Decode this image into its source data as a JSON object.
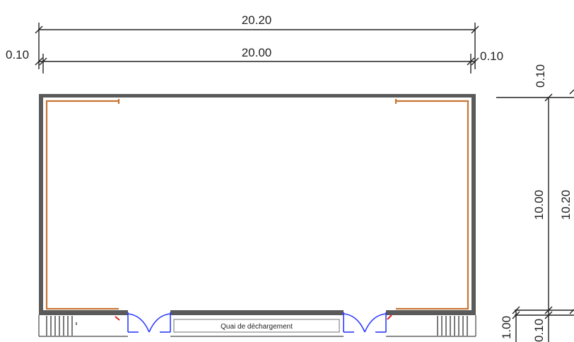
{
  "dimensions": {
    "top_overall": "20.20",
    "top_inner": "20.00",
    "top_left_wall": "0.10",
    "top_right_wall": "0.10",
    "right_top_wall": "0.10",
    "right_inner": "10.00",
    "right_overall": "10.20",
    "right_dock": "1.00",
    "right_bottom_wall": "0.10"
  },
  "labels": {
    "dock": "Quai de déchargement"
  },
  "colors": {
    "wall": "#5a5a5a",
    "door": "#2b3cff",
    "furniture": "#c87533",
    "accent": "#e02020",
    "dimension": "#222222"
  }
}
